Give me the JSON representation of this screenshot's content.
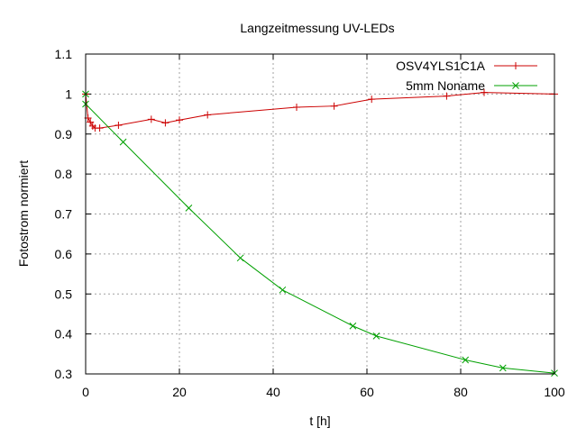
{
  "chart_data": {
    "type": "line",
    "title": "Langzeitmessung UV-LEDs",
    "xlabel": "t [h]",
    "ylabel": "Fotostrom normiert",
    "xlim": [
      0,
      100
    ],
    "ylim": [
      0.3,
      1.1
    ],
    "xticks": [
      0,
      20,
      40,
      60,
      80,
      100
    ],
    "xtick_labels": [
      "0",
      "20",
      "40",
      "60",
      "80",
      "100"
    ],
    "yticks": [
      0.3,
      0.4,
      0.5,
      0.6,
      0.7,
      0.8,
      0.9,
      1.0,
      1.1
    ],
    "ytick_labels": [
      "0.3",
      "0.4",
      "0.5",
      "0.6",
      "0.7",
      "0.8",
      "0.9",
      "1",
      "1.1"
    ],
    "grid": true,
    "legend_position": "top-right",
    "series": [
      {
        "name": "OSV4YLS1C1A",
        "color": "#cc0000",
        "marker": "plus",
        "x": [
          0,
          0.5,
          1,
          1.5,
          2,
          3,
          7,
          14,
          17,
          20,
          26,
          45,
          53,
          61,
          77,
          85,
          100
        ],
        "y": [
          1.0,
          0.94,
          0.93,
          0.92,
          0.915,
          0.915,
          0.922,
          0.937,
          0.928,
          0.935,
          0.948,
          0.967,
          0.97,
          0.987,
          0.995,
          1.004,
          1.0
        ]
      },
      {
        "name": "5mm Noname",
        "color": "#00a000",
        "marker": "cross",
        "x": [
          0,
          0,
          8,
          22,
          33,
          42,
          57,
          62,
          81,
          89,
          100
        ],
        "y": [
          1.0,
          0.975,
          0.88,
          0.715,
          0.59,
          0.51,
          0.42,
          0.395,
          0.335,
          0.315,
          0.302
        ]
      }
    ]
  }
}
